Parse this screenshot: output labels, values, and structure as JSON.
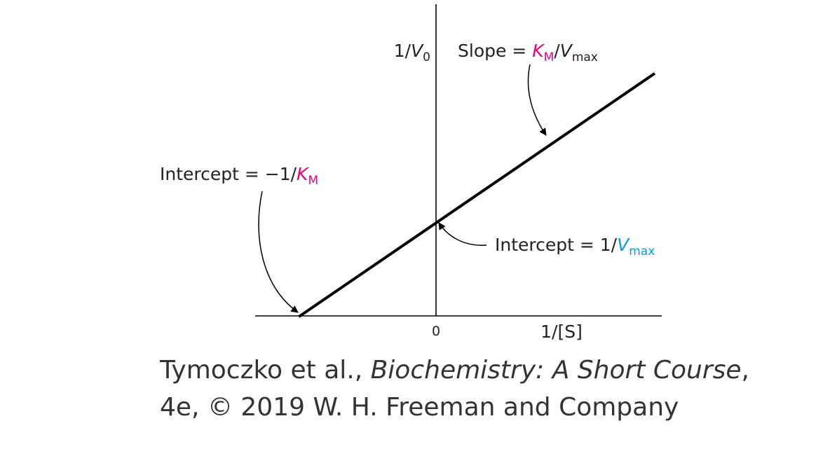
{
  "chart_data": {
    "type": "line",
    "title": "",
    "xlabel": "1/[S]",
    "ylabel": "1/V0",
    "x_tick_labels": [
      "0"
    ],
    "xlim": [
      -1.0,
      1.6
    ],
    "ylim": [
      0,
      1.8
    ],
    "series": [
      {
        "x": [
          -1.0,
          0.0,
          1.6
        ],
        "y": [
          0.0,
          0.68,
          1.77
        ]
      }
    ],
    "annotations": {
      "slope": {
        "text": "Slope = ",
        "km": "K",
        "km_sub": "M",
        "sep": "/",
        "vmax": "V",
        "vmax_sub": "max"
      },
      "x_intercept": {
        "text": "Intercept = −1/",
        "km": "K",
        "km_sub": "M"
      },
      "y_intercept": {
        "text": "Intercept = 1/",
        "vmax": "V",
        "vmax_sub": "max"
      }
    },
    "y_axis_label": {
      "prefix": "1/",
      "v": "V",
      "v_sub": "0"
    },
    "colors": {
      "km": "#e6007e",
      "vmax": "#00a0e0",
      "line": "#000000",
      "axis": "#000000"
    }
  },
  "caption": {
    "authors": "Tymoczko et al., ",
    "book": "Biochemistry: A Short Course",
    "rest": ", 4e, © 2019 W. H. Freeman and Company"
  }
}
